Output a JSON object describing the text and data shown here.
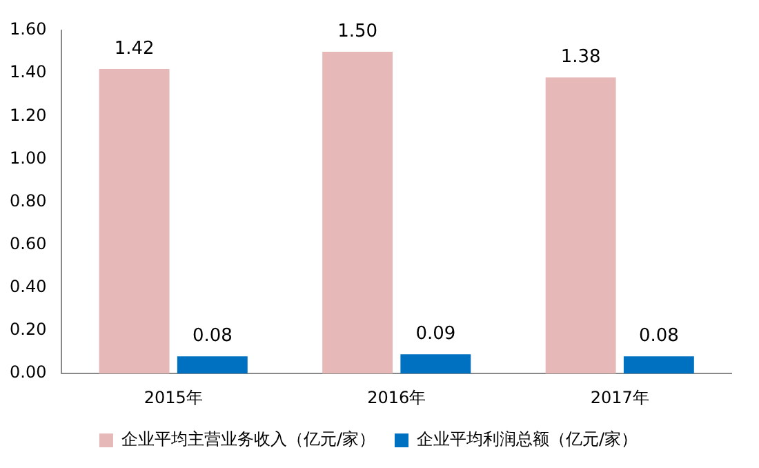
{
  "chart_data": {
    "type": "bar",
    "categories": [
      "2015年",
      "2016年",
      "2017年"
    ],
    "series": [
      {
        "name": "企业平均主营业务收入（亿元/家）",
        "color": "#e6b8b7",
        "values": [
          1.42,
          1.5,
          1.38
        ],
        "value_labels": [
          "1.42",
          "1.50",
          "1.38"
        ]
      },
      {
        "name": "企业平均利润总额（亿元/家）",
        "color": "#0070c0",
        "values": [
          0.08,
          0.09,
          0.08
        ],
        "value_labels": [
          "0.08",
          "0.09",
          "0.08"
        ]
      }
    ],
    "ylim": [
      0,
      1.6
    ],
    "yticks": [
      {
        "value": 0,
        "label": "0.00"
      },
      {
        "value": 0.2,
        "label": "0.20"
      },
      {
        "value": 0.4,
        "label": "0.40"
      },
      {
        "value": 0.6,
        "label": "0.60"
      },
      {
        "value": 0.8,
        "label": "0.80"
      },
      {
        "value": 1,
        "label": "1.00"
      },
      {
        "value": 1.2,
        "label": "1.20"
      },
      {
        "value": 1.4,
        "label": "1.40"
      },
      {
        "value": 1.6,
        "label": "1.60"
      }
    ],
    "grid": false,
    "legend": "bottom"
  }
}
